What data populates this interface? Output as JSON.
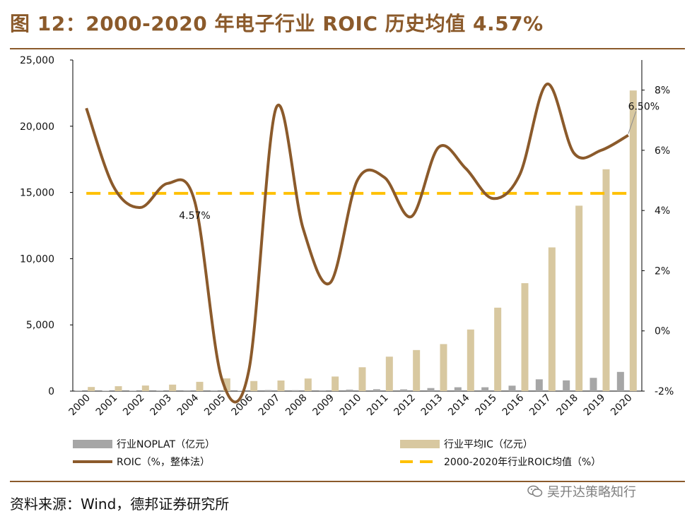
{
  "title": "图 12：2000-2020 年电子行业 ROIC 历史均值 4.57%",
  "source": "资料来源：Wind，德邦证券研究所",
  "watermark": "吴开达策略知行",
  "colors": {
    "title": "#8b5a2b",
    "noplat_bar": "#a6a6a6",
    "ic_bar": "#d8c8a0",
    "roic_line": "#8b5a2b",
    "mean_line": "#ffc000"
  },
  "chart_data": {
    "type": "bar+line",
    "categories": [
      "2000",
      "2001",
      "2002",
      "2003",
      "2004",
      "2005",
      "2006",
      "2007",
      "2008",
      "2009",
      "2010",
      "2011",
      "2012",
      "2013",
      "2014",
      "2015",
      "2016",
      "2017",
      "2018",
      "2019",
      "2020"
    ],
    "series": [
      {
        "name": "行业NOPLAT（亿元）",
        "type": "bar",
        "axis": "left",
        "values": [
          40,
          30,
          35,
          45,
          60,
          50,
          30,
          80,
          70,
          60,
          110,
          140,
          130,
          230,
          290,
          290,
          410,
          890,
          810,
          1000,
          1450
        ]
      },
      {
        "name": "行业平均IC（亿元）",
        "type": "bar",
        "axis": "left",
        "values": [
          310,
          370,
          420,
          490,
          700,
          960,
          760,
          800,
          950,
          1100,
          1800,
          2600,
          3100,
          3550,
          4650,
          6300,
          8150,
          10850,
          14000,
          16750,
          22700
        ]
      },
      {
        "name": "ROIC（%，整体法）",
        "type": "line",
        "axis": "right",
        "values": [
          7.4,
          4.8,
          4.1,
          4.9,
          4.3,
          -1.6,
          -1.3,
          7.4,
          3.4,
          1.6,
          5.0,
          5.1,
          3.8,
          6.1,
          5.4,
          4.4,
          5.2,
          8.2,
          5.9,
          6.0,
          6.5
        ]
      },
      {
        "name": "2000-2020年行业ROIC均值（%）",
        "type": "line",
        "axis": "right",
        "dashed": true,
        "values": [
          4.57,
          4.57,
          4.57,
          4.57,
          4.57,
          4.57,
          4.57,
          4.57,
          4.57,
          4.57,
          4.57,
          4.57,
          4.57,
          4.57,
          4.57,
          4.57,
          4.57,
          4.57,
          4.57,
          4.57,
          4.57
        ]
      }
    ],
    "y_left": {
      "ylim": [
        0,
        25000
      ],
      "ticks": [
        "0",
        "5,000",
        "10,000",
        "15,000",
        "20,000",
        "25,000"
      ],
      "tick_values": [
        0,
        5000,
        10000,
        15000,
        20000,
        25000
      ]
    },
    "y_right": {
      "ylim": [
        -2,
        9
      ],
      "ticks": [
        "-2%",
        "0%",
        "2%",
        "4%",
        "6%",
        "8%"
      ],
      "tick_values": [
        -2,
        0,
        2,
        4,
        6,
        8
      ]
    },
    "annotations": [
      {
        "text": "4.57%",
        "category": "2004",
        "value": 4.57
      },
      {
        "text": "6.50%",
        "category": "2020",
        "value": 6.5
      }
    ],
    "legend": [
      "行业NOPLAT（亿元）",
      "行业平均IC（亿元）",
      "ROIC（%，整体法）",
      "2000-2020年行业ROIC均值（%）"
    ],
    "legend_position": "bottom"
  }
}
